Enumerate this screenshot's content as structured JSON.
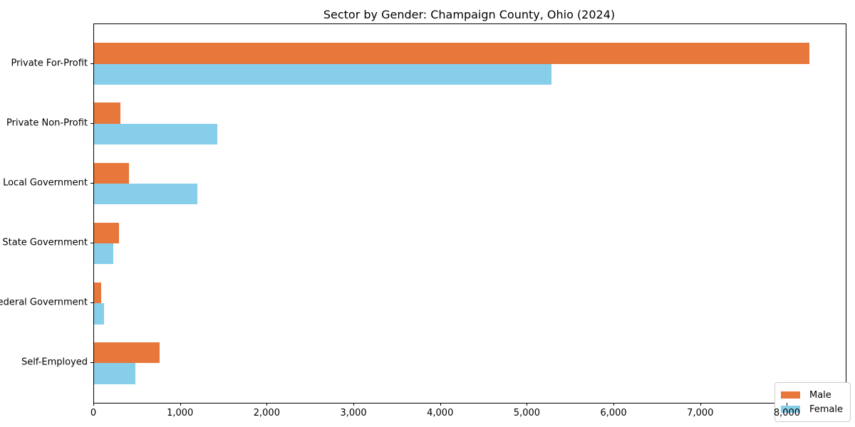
{
  "chart_data": {
    "type": "bar",
    "orientation": "horizontal",
    "title": "Sector by Gender: Champaign County, Ohio (2024)",
    "categories": [
      "Private For-Profit",
      "Private Non-Profit",
      "Local Government",
      "State Government",
      "Federal Government",
      "Self-Employed"
    ],
    "series": [
      {
        "name": "Male",
        "color": "#e7773b",
        "values": [
          8250,
          300,
          400,
          290,
          85,
          760
        ]
      },
      {
        "name": "Female",
        "color": "#87ceeb",
        "values": [
          5280,
          1420,
          1190,
          220,
          115,
          475
        ]
      }
    ],
    "xlabel": "",
    "ylabel": "",
    "xlim": [
      0,
      8670
    ],
    "xticks": [
      0,
      1000,
      2000,
      3000,
      4000,
      5000,
      6000,
      7000,
      8000
    ],
    "xtick_labels": [
      "0",
      "1,000",
      "2,000",
      "3,000",
      "4,000",
      "5,000",
      "6,000",
      "7,000",
      "8,000"
    ],
    "grid": false,
    "bar_width_units": 0.35,
    "legend": {
      "position": "lower right",
      "entries": [
        "Male",
        "Female"
      ]
    },
    "colors": {
      "male": "#e7773b",
      "female": "#87ceeb",
      "spine": "#000000",
      "legend_border": "#cccccc",
      "background": "#ffffff"
    }
  }
}
